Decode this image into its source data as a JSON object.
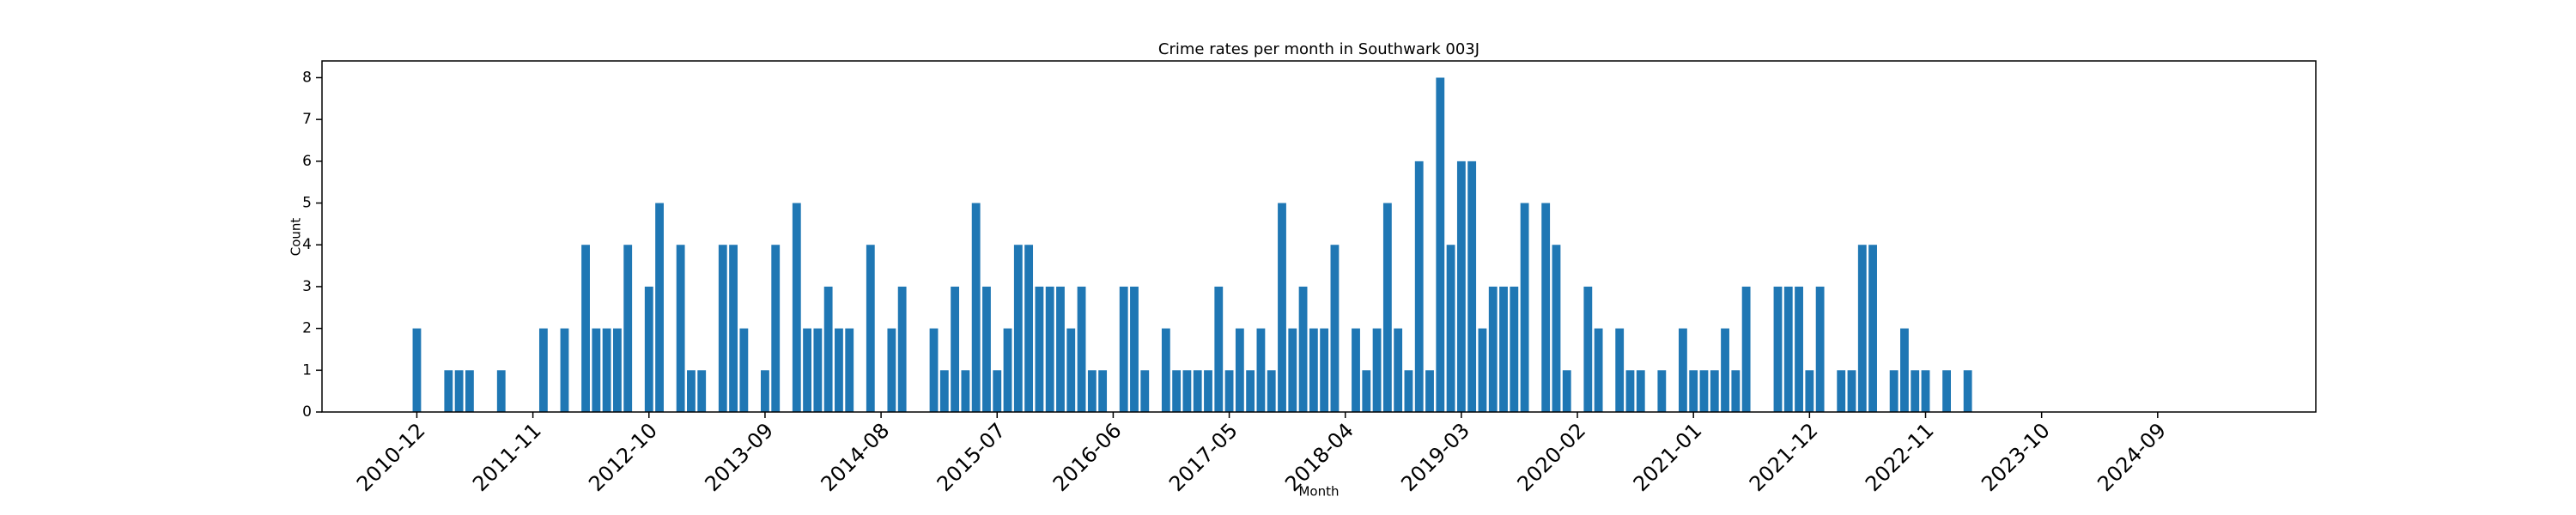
{
  "chart_data": {
    "type": "bar",
    "title": "Crime rates per month in Southwark 003J",
    "xlabel": "Month",
    "ylabel": "Count",
    "color": "#1f77b4",
    "categories": [
      "2010-12",
      null,
      null,
      null,
      null,
      null,
      null,
      null,
      null,
      null,
      null,
      "2011-11",
      null,
      null,
      null,
      null,
      null,
      null,
      null,
      null,
      null,
      null,
      "2012-10",
      null,
      null,
      null,
      null,
      null,
      null,
      null,
      null,
      null,
      null,
      "2013-09",
      null,
      null,
      null,
      null,
      null,
      null,
      null,
      null,
      null,
      null,
      "2014-08",
      null,
      null,
      null,
      null,
      null,
      null,
      null,
      null,
      null,
      null,
      "2015-07",
      null,
      null,
      null,
      null,
      null,
      null,
      null,
      null,
      null,
      null,
      "2016-06",
      null,
      null,
      null,
      null,
      null,
      null,
      null,
      null,
      null,
      null,
      "2017-05",
      null,
      null,
      null,
      null,
      null,
      null,
      null,
      null,
      null,
      null,
      "2018-04",
      null,
      null,
      null,
      null,
      null,
      null,
      null,
      null,
      null,
      null,
      "2019-03",
      null,
      null,
      null,
      null,
      null,
      null,
      null,
      null,
      null,
      null,
      "2020-02",
      null,
      null,
      null,
      null,
      null,
      null,
      null,
      null,
      null,
      null,
      "2021-01",
      null,
      null,
      null,
      null,
      null,
      null,
      null,
      null,
      null,
      null,
      "2021-12",
      null,
      null,
      null,
      null,
      null,
      null,
      null,
      null,
      null,
      null,
      "2022-11",
      null,
      null,
      null,
      null,
      null,
      null,
      null,
      null,
      null,
      null,
      "2023-10",
      null,
      null,
      null,
      null,
      null,
      null,
      null,
      null,
      null,
      null,
      "2024-09",
      null,
      null,
      null,
      null,
      null,
      null
    ],
    "values": [
      2,
      0,
      0,
      1,
      1,
      1,
      0,
      0,
      1,
      0,
      0,
      0,
      2,
      0,
      2,
      0,
      4,
      2,
      2,
      2,
      4,
      0,
      3,
      5,
      0,
      4,
      1,
      1,
      0,
      4,
      4,
      2,
      0,
      1,
      4,
      0,
      5,
      2,
      2,
      3,
      2,
      2,
      0,
      4,
      0,
      2,
      3,
      0,
      0,
      2,
      1,
      3,
      1,
      5,
      3,
      1,
      2,
      4,
      4,
      3,
      3,
      3,
      2,
      3,
      1,
      1,
      0,
      3,
      3,
      1,
      0,
      2,
      1,
      1,
      1,
      1,
      3,
      1,
      2,
      1,
      2,
      1,
      5,
      2,
      3,
      2,
      2,
      4,
      0,
      2,
      1,
      2,
      5,
      2,
      1,
      6,
      1,
      8,
      4,
      6,
      6,
      2,
      3,
      3,
      3,
      5,
      0,
      5,
      4,
      1,
      0,
      3,
      2,
      0,
      2,
      1,
      1,
      0,
      1,
      0,
      2,
      1,
      1,
      1,
      2,
      1,
      3,
      0,
      0,
      3,
      3,
      3,
      1,
      3,
      0,
      1,
      1,
      4,
      4,
      0,
      1,
      2,
      1,
      1,
      0,
      1,
      0,
      1,
      0,
      0,
      0,
      0,
      0,
      0,
      0,
      0,
      0,
      0,
      0,
      0,
      0,
      0,
      0,
      0,
      0,
      0,
      0,
      0,
      0,
      0,
      0,
      0
    ],
    "ylim": [
      0,
      8.4
    ],
    "yticks": [
      0,
      1,
      2,
      3,
      4,
      5,
      6,
      7,
      8
    ]
  }
}
